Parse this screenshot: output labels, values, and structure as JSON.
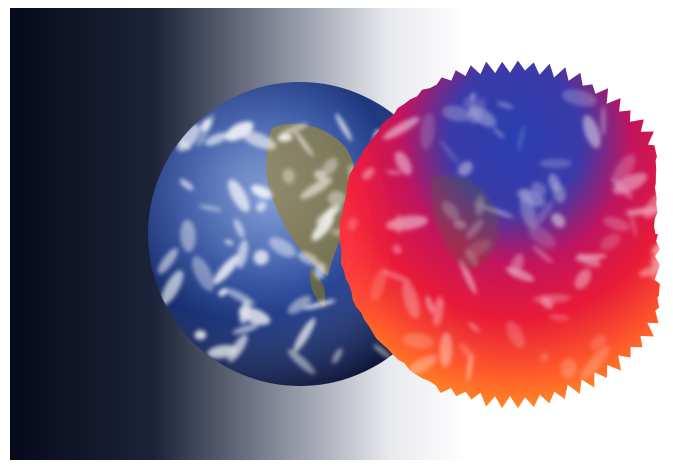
{
  "image": {
    "subject": "earth-and-heat-distorted-earth",
    "colors": {
      "background_dark": "#06091a",
      "background_light": "#ffffff",
      "ocean_deep": "#10235e",
      "ocean": "#2f4ea0",
      "ocean_light": "#6f8fd0",
      "land": "#7d7446",
      "cloud": "#ffffff",
      "hot_red": "#e81a38",
      "hot_magenta": "#c2145e",
      "hot_orange": "#ff7a1a",
      "hot_yellow": "#ffe23a",
      "hot_blue": "#2a3fb0"
    }
  }
}
